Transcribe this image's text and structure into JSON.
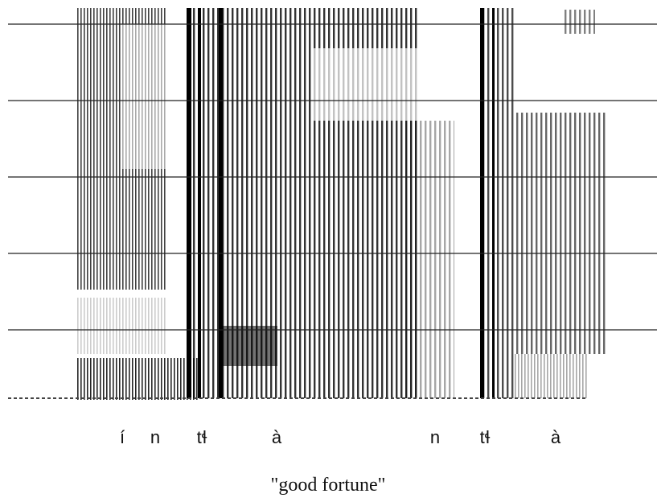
{
  "segments": [
    "í",
    "n",
    "tɬ",
    "à",
    "n",
    "tɬ",
    "à"
  ],
  "caption": "\"good fortune\""
}
